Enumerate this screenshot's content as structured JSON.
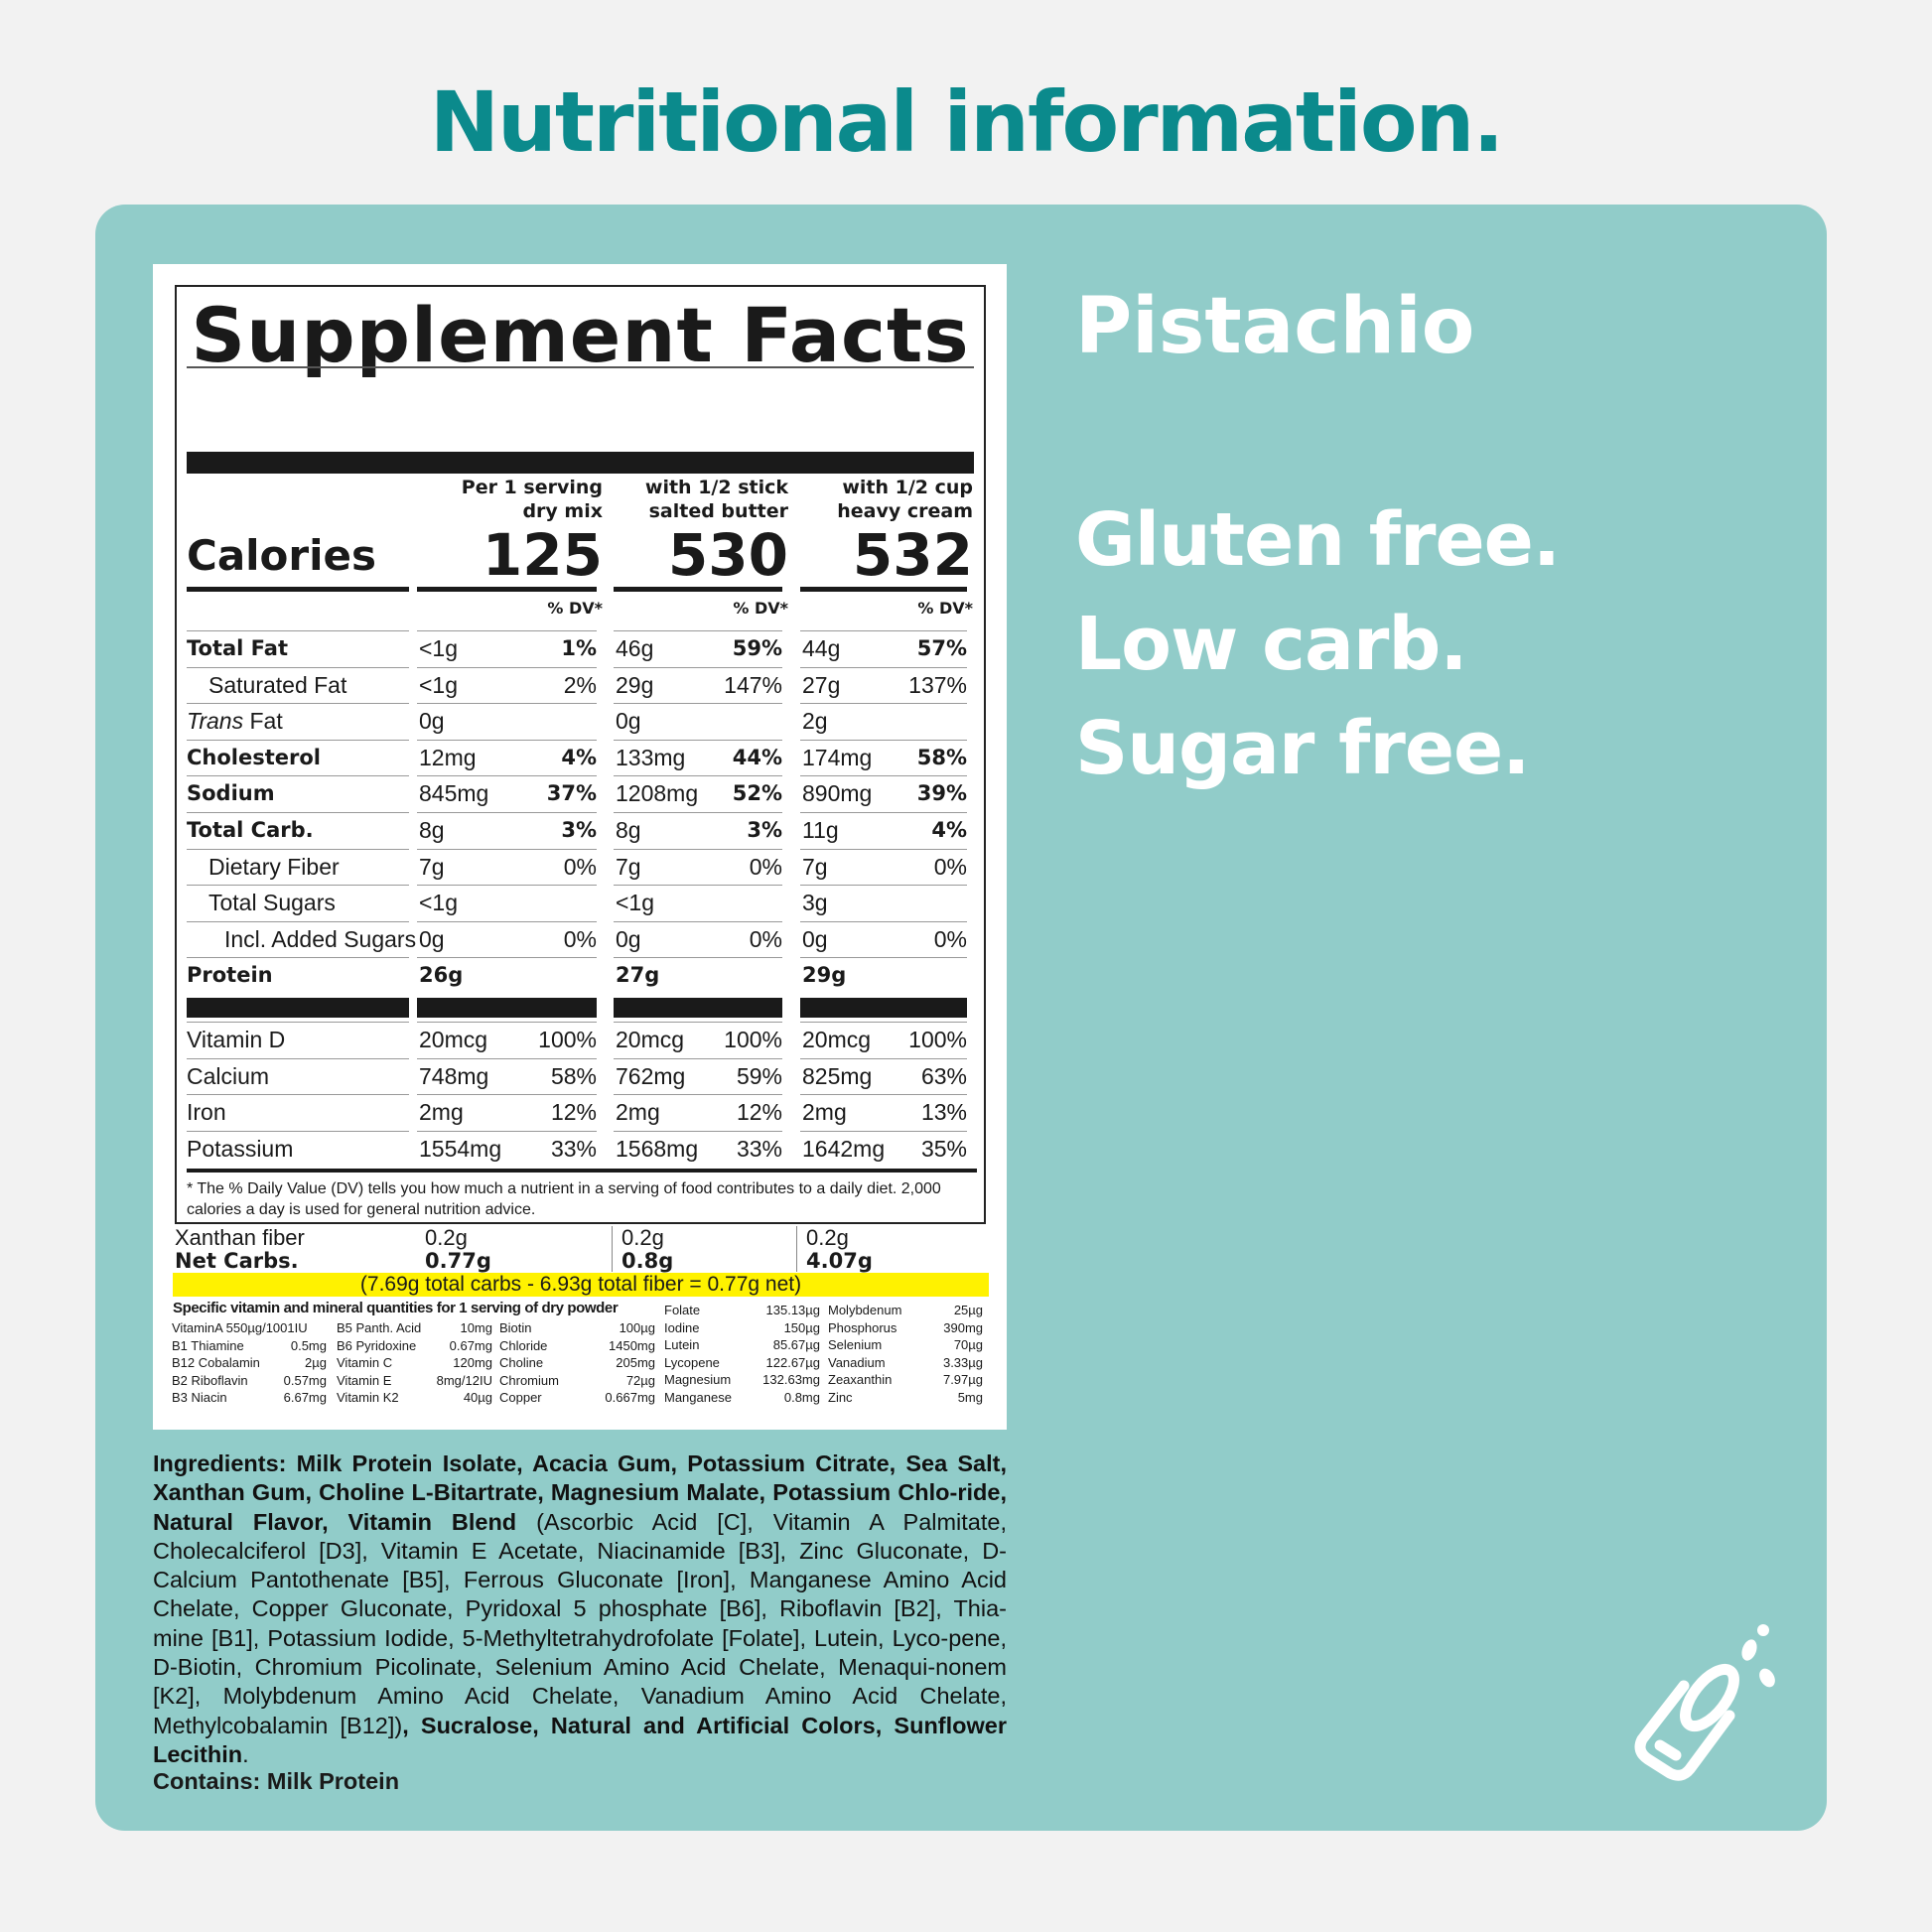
{
  "page_heading": "Nutritional information.",
  "facts": {
    "title": "Supplement Facts",
    "calories_label": "Calories",
    "dv_label": "% DV*",
    "columns": [
      {
        "head1": "Per 1 serving",
        "head2": "dry mix",
        "calories": "125"
      },
      {
        "head1": "with 1/2 stick",
        "head2": "salted butter",
        "calories": "530"
      },
      {
        "head1": "with 1/2 cup",
        "head2": "heavy cream",
        "calories": "532"
      }
    ],
    "nutrient_label_prefix_trans": "Trans",
    "rows": [
      {
        "label": "Total Fat",
        "c": [
          [
            "<1g",
            "1%"
          ],
          [
            "46g",
            "59%"
          ],
          [
            "44g",
            "57%"
          ]
        ]
      },
      {
        "label": "Saturated Fat",
        "c": [
          [
            "<1g",
            "2%"
          ],
          [
            "29g",
            "147%"
          ],
          [
            "27g",
            "137%"
          ]
        ]
      },
      {
        "label": " Fat",
        "c": [
          [
            "0g",
            ""
          ],
          [
            "0g",
            ""
          ],
          [
            "2g",
            ""
          ]
        ]
      },
      {
        "label": "Cholesterol",
        "c": [
          [
            "12mg",
            "4%"
          ],
          [
            "133mg",
            "44%"
          ],
          [
            "174mg",
            "58%"
          ]
        ]
      },
      {
        "label": "Sodium",
        "c": [
          [
            "845mg",
            "37%"
          ],
          [
            "1208mg",
            "52%"
          ],
          [
            "890mg",
            "39%"
          ]
        ]
      },
      {
        "label": "Total Carb.",
        "c": [
          [
            "8g",
            "3%"
          ],
          [
            "8g",
            "3%"
          ],
          [
            "11g",
            "4%"
          ]
        ]
      },
      {
        "label": "Dietary Fiber",
        "c": [
          [
            "7g",
            "0%"
          ],
          [
            "7g",
            "0%"
          ],
          [
            "7g",
            "0%"
          ]
        ]
      },
      {
        "label": "Total Sugars",
        "c": [
          [
            "<1g",
            ""
          ],
          [
            "<1g",
            ""
          ],
          [
            "3g",
            ""
          ]
        ]
      },
      {
        "label": "Incl. Added Sugars",
        "c": [
          [
            "0g",
            "0%"
          ],
          [
            "0g",
            "0%"
          ],
          [
            "0g",
            "0%"
          ]
        ]
      },
      {
        "label": "Protein",
        "c": [
          [
            "26g",
            ""
          ],
          [
            "27g",
            ""
          ],
          [
            "29g",
            ""
          ]
        ]
      }
    ],
    "vitamin_rows": [
      {
        "label": "Vitamin D",
        "c": [
          [
            "20mcg",
            "100%"
          ],
          [
            "20mcg",
            "100%"
          ],
          [
            "20mcg",
            "100%"
          ]
        ]
      },
      {
        "label": "Calcium",
        "c": [
          [
            "748mg",
            "58%"
          ],
          [
            "762mg",
            "59%"
          ],
          [
            "825mg",
            "63%"
          ]
        ]
      },
      {
        "label": "Iron",
        "c": [
          [
            "2mg",
            "12%"
          ],
          [
            "2mg",
            "12%"
          ],
          [
            "2mg",
            "13%"
          ]
        ]
      },
      {
        "label": "Potassium",
        "c": [
          [
            "1554mg",
            "33%"
          ],
          [
            "1568mg",
            "33%"
          ],
          [
            "1642mg",
            "35%"
          ]
        ]
      }
    ],
    "footnote": "* The % Daily Value (DV) tells you how much a nutrient in a serving of food contributes to a daily diet. 2,000 calories a day is used for general nutrition advice."
  },
  "net_carbs": {
    "xanthan_label": "Xanthan fiber",
    "xanthan_values": [
      "0.2g",
      "0.2g",
      "0.2g"
    ],
    "net_label": "Net Carbs.",
    "net_values": [
      "0.77g",
      "0.8g",
      "4.07g"
    ],
    "formula": "(7.69g total carbs - 6.93g total fiber = 0.77g net)"
  },
  "micros": {
    "heading": "Specific vitamin and mineral quantities for 1 serving of dry powder",
    "col1": [
      [
        "VitaminA 550µg/1001IU",
        ""
      ],
      [
        "B1 Thiamine",
        "0.5mg"
      ],
      [
        "B12 Cobalamin",
        "2µg"
      ],
      [
        "B2 Riboflavin",
        "0.57mg"
      ],
      [
        "B3 Niacin",
        "6.67mg"
      ]
    ],
    "col2": [
      [
        "B5 Panth. Acid",
        "10mg"
      ],
      [
        "B6 Pyridoxine",
        "0.67mg"
      ],
      [
        "Vitamin C",
        "120mg"
      ],
      [
        "Vitamin E",
        "8mg/12IU"
      ],
      [
        "Vitamin K2",
        "40µg"
      ]
    ],
    "col3": [
      [
        "Biotin",
        "100µg"
      ],
      [
        "Chloride",
        "1450mg"
      ],
      [
        "Choline",
        "205mg"
      ],
      [
        "Chromium",
        "72µg"
      ],
      [
        "Copper",
        "0.667mg"
      ]
    ],
    "col4": [
      [
        "Folate",
        "135.13µg"
      ],
      [
        "Iodine",
        "150µg"
      ],
      [
        "Lutein",
        "85.67µg"
      ],
      [
        "Lycopene",
        "122.67µg"
      ],
      [
        "Magnesium",
        "132.63mg"
      ],
      [
        "Manganese",
        "0.8mg"
      ]
    ],
    "col5": [
      [
        "Molybdenum",
        "25µg"
      ],
      [
        "Phosphorus",
        "390mg"
      ],
      [
        "Selenium",
        "70µg"
      ],
      [
        "Vanadium",
        "3.33µg"
      ],
      [
        "Zeaxanthin",
        "7.97µg"
      ],
      [
        "Zinc",
        "5mg"
      ]
    ]
  },
  "ingredients": {
    "label": "Ingredients:",
    "bold_part": " Milk Protein Isolate, Acacia Gum, Potassium Citrate, Sea Salt, Xanthan Gum, Choline L-Bitartrate, Magnesium Malate, Potassium Chlo-ride, Natural Flavor, Vitamin Blend",
    "blend_part": " (Ascorbic Acid [C], Vitamin A Palmitate, Cholecalciferol [D3], Vitamin E Acetate, Niacinamide [B3], Zinc Gluconate, D-Calcium Pantothenate [B5], Ferrous Gluconate [Iron], Manganese Amino Acid Chelate, Copper Gluconate, Pyridoxal 5 phosphate [B6], Riboflavin [B2], Thia-mine [B1], Potassium Iodide, 5-Methyltetrahydrofolate [Folate], Lutein, Lyco-pene, D-Biotin, Chromium Picolinate, Selenium Amino Acid Chelate, Menaqui-nonem [K2], Molybdenum Amino Acid Chelate, Vanadium Amino Acid Chelate, Methylcobalamin [B12])",
    "tail_bold": ", Sucralose, Natural and Artificial Colors, Sunflower Lecithin",
    "tail_end": ".",
    "contains": "Contains: Milk Protein"
  },
  "flavor": "Pistachio",
  "claims": [
    "Gluten free.",
    "Low carb.",
    "Sugar free."
  ],
  "icons": {
    "cup": "shaker-cup-icon"
  },
  "colors": {
    "accent": "#0b8a8c",
    "panel": "#91ccc9",
    "highlight": "#fff200"
  }
}
